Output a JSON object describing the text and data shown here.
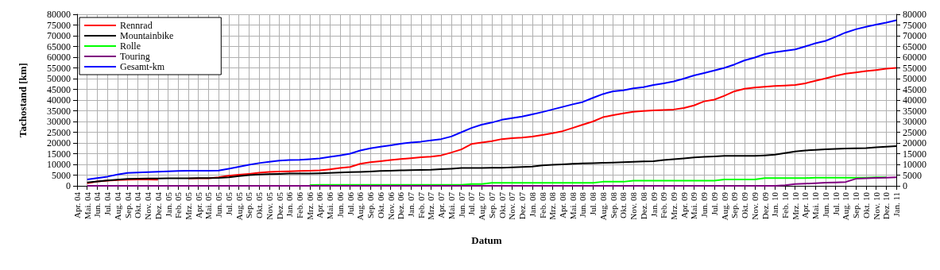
{
  "chart_data": {
    "type": "line",
    "xlabel": "Datum",
    "ylabel": "Tachostand [km]",
    "categories": [
      "Apr. 04",
      "Mai. 04",
      "Jun. 04",
      "Jul. 04",
      "Aug. 04",
      "Sep. 04",
      "Okt. 04",
      "Nov. 04",
      "Dez. 04",
      "Jan. 05",
      "Feb. 05",
      "Mrz. 05",
      "Apr. 05",
      "Mai. 05",
      "Jun. 05",
      "Jul. 05",
      "Aug. 05",
      "Sep. 05",
      "Okt. 05",
      "Nov. 05",
      "Dez. 05",
      "Jan. 06",
      "Feb. 06",
      "Mrz. 06",
      "Apr. 06",
      "Mai. 06",
      "Jun. 06",
      "Jul. 06",
      "Aug. 06",
      "Sep. 06",
      "Okt. 06",
      "Nov. 06",
      "Dez. 06",
      "Jan. 07",
      "Feb. 07",
      "Mrz. 07",
      "Apr. 07",
      "Mai. 07",
      "Jun. 07",
      "Jul. 07",
      "Aug. 07",
      "Sep. 07",
      "Okt. 07",
      "Nov. 07",
      "Dez. 07",
      "Jan. 08",
      "Feb. 08",
      "Mrz. 08",
      "Apr. 08",
      "Mai. 08",
      "Jun. 08",
      "Jul. 08",
      "Aug. 08",
      "Sep. 08",
      "Okt. 08",
      "Nov. 08",
      "Dez. 08",
      "Jan. 09",
      "Feb. 09",
      "Mrz. 09",
      "Apr. 09",
      "Mai. 09",
      "Jun. 09",
      "Jul. 09",
      "Aug. 09",
      "Sep. 09",
      "Okt. 09",
      "Nov. 09",
      "Dez. 09",
      "Jan. 10",
      "Feb. 10",
      "Mrz. 10",
      "Apr. 10",
      "Mai. 10",
      "Jun. 10",
      "Jul. 10",
      "Aug. 10",
      "Sep. 10",
      "Okt. 10",
      "Nov. 10",
      "Dez. 10",
      "Jan. 11"
    ],
    "series": [
      {
        "name": "Rennrad",
        "color": "#ff0000",
        "values": [
          null,
          1200,
          2000,
          2400,
          2700,
          2900,
          3000,
          3000,
          2900,
          null,
          null,
          3400,
          3500,
          3500,
          4000,
          4700,
          5200,
          5600,
          6100,
          6500,
          6700,
          6800,
          6900,
          7000,
          7200,
          7700,
          8300,
          8800,
          10300,
          11000,
          11500,
          12000,
          12500,
          12900,
          13300,
          13600,
          14200,
          15500,
          17000,
          19500,
          20200,
          20800,
          21800,
          22200,
          22500,
          23000,
          23700,
          24500,
          25500,
          27000,
          28500,
          30000,
          32000,
          33000,
          33800,
          34500,
          34900,
          35200,
          35400,
          35600,
          36300,
          37500,
          39400,
          40200,
          42000,
          44100,
          45300,
          45800,
          46200,
          46600,
          46800,
          47000,
          47800,
          49000,
          50100,
          51300,
          52300,
          52900,
          53500,
          54000,
          54600,
          55000
        ]
      },
      {
        "name": "Mountainbike",
        "color": "#000000",
        "values": [
          null,
          1600,
          2000,
          2500,
          2900,
          3200,
          3300,
          3400,
          3400,
          3500,
          3500,
          3500,
          3600,
          3600,
          3700,
          4000,
          4500,
          5000,
          5300,
          5500,
          5600,
          5700,
          5700,
          5700,
          5800,
          6000,
          6200,
          6400,
          6500,
          6700,
          6900,
          7000,
          7200,
          7300,
          7400,
          7500,
          7800,
          8000,
          8300,
          8300,
          8300,
          8400,
          8400,
          8600,
          8800,
          9000,
          9500,
          9800,
          10000,
          10300,
          10500,
          10600,
          10700,
          10800,
          11000,
          11200,
          11400,
          11500,
          12000,
          12400,
          12800,
          13200,
          13500,
          13700,
          14000,
          14000,
          14000,
          14000,
          14200,
          14500,
          15300,
          16000,
          16500,
          16800,
          17000,
          17200,
          17400,
          17500,
          17600,
          18000,
          18200,
          18500
        ]
      },
      {
        "name": "Rolle",
        "color": "#00ff00",
        "values": [
          null,
          null,
          null,
          null,
          null,
          null,
          null,
          null,
          null,
          null,
          null,
          null,
          null,
          null,
          null,
          null,
          null,
          null,
          null,
          null,
          null,
          null,
          null,
          400,
          500,
          500,
          500,
          500,
          500,
          500,
          500,
          500,
          500,
          500,
          500,
          500,
          500,
          500,
          500,
          800,
          800,
          1400,
          1400,
          1400,
          1400,
          1400,
          1400,
          1400,
          1400,
          1400,
          1400,
          1400,
          1900,
          1900,
          1900,
          2400,
          2400,
          2400,
          2400,
          2400,
          2400,
          2400,
          2400,
          2400,
          3000,
          3000,
          3000,
          3000,
          3600,
          3600,
          3600,
          3600,
          3600,
          3800,
          3800,
          3800,
          3800,
          3800,
          3800,
          4000,
          4000,
          null
        ]
      },
      {
        "name": "Touring",
        "color": "#800080",
        "values": [
          null,
          0,
          0,
          0,
          0,
          0,
          0,
          0,
          0,
          0,
          0,
          0,
          0,
          0,
          0,
          0,
          0,
          0,
          0,
          0,
          0,
          0,
          0,
          0,
          0,
          0,
          0,
          0,
          0,
          0,
          0,
          0,
          0,
          0,
          0,
          0,
          0,
          0,
          0,
          0,
          0,
          0,
          0,
          0,
          0,
          0,
          0,
          0,
          0,
          0,
          0,
          0,
          0,
          0,
          0,
          0,
          0,
          0,
          0,
          0,
          0,
          0,
          0,
          0,
          0,
          0,
          0,
          0,
          0,
          0,
          300,
          800,
          1000,
          1200,
          1500,
          1600,
          1800,
          3300,
          3500,
          3700,
          3800,
          4000
        ]
      },
      {
        "name": "Gesamt-km",
        "color": "#0000ff",
        "values": [
          null,
          3000,
          3600,
          4300,
          5300,
          6000,
          6200,
          6400,
          6600,
          6800,
          6900,
          7000,
          7000,
          7000,
          7100,
          8000,
          8900,
          9800,
          10600,
          11200,
          11800,
          12000,
          12100,
          12400,
          12800,
          13500,
          14200,
          15000,
          16500,
          17500,
          18200,
          18900,
          19600,
          20200,
          20600,
          21200,
          21800,
          23000,
          25000,
          27000,
          28500,
          29500,
          30800,
          31600,
          32300,
          33300,
          34400,
          35600,
          36800,
          38000,
          39100,
          41000,
          42800,
          44100,
          44500,
          45500,
          46000,
          47000,
          47800,
          48700,
          50000,
          51500,
          52600,
          53800,
          55000,
          56600,
          58500,
          59800,
          61500,
          62300,
          63000,
          63600,
          65000,
          66500,
          67600,
          69500,
          71500,
          73000,
          74200,
          75200,
          76100,
          77200
        ]
      }
    ],
    "ylim": [
      0,
      80000
    ],
    "yticks": [
      0,
      5000,
      10000,
      15000,
      20000,
      25000,
      30000,
      35000,
      40000,
      45000,
      50000,
      55000,
      60000,
      65000,
      70000,
      75000,
      80000
    ],
    "y2lim": [
      0,
      80000
    ],
    "y2ticks": [
      0,
      5000,
      10000,
      15000,
      20000,
      25000,
      30000,
      35000,
      40000,
      45000,
      50000,
      55000,
      60000,
      65000,
      70000,
      75000,
      80000
    ],
    "grid": true,
    "legend": "top left",
    "marker": "none",
    "line_style": "solid"
  }
}
